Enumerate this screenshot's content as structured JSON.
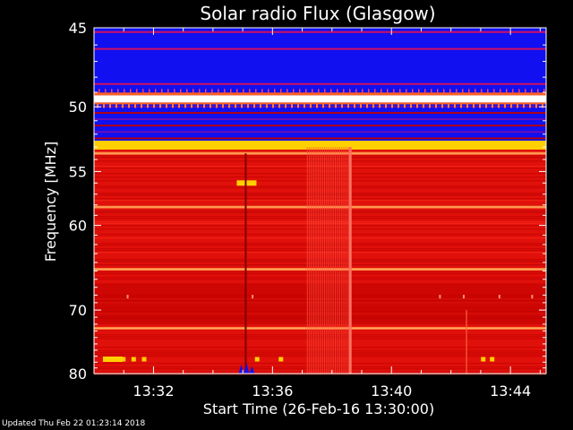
{
  "chart_data": {
    "type": "heatmap",
    "title": "Solar radio Flux (Glasgow)",
    "xlabel": "Start Time (26-Feb-16 13:30:00)",
    "ylabel": "Frequency [MHz]",
    "x_range_minutes": [
      0,
      15.2
    ],
    "x_ticks": [
      {
        "minutes": 2,
        "label": "13:32"
      },
      {
        "minutes": 6,
        "label": "13:36"
      },
      {
        "minutes": 10,
        "label": "13:40"
      },
      {
        "minutes": 14,
        "label": "13:44"
      }
    ],
    "y_range_mhz": [
      45,
      80
    ],
    "y_scale": "inverted-reciprocal",
    "y_ticks": [
      45,
      50,
      55,
      60,
      70,
      80
    ],
    "background_level": "red",
    "bands": [
      {
        "from": 45,
        "to": 49.2,
        "level": "blue"
      },
      {
        "from": 49.2,
        "to": 49.7,
        "level": "white"
      },
      {
        "from": 49.7,
        "to": 52.5,
        "level": "blue-red-striped"
      },
      {
        "from": 52.5,
        "to": 53.2,
        "level": "yellow"
      },
      {
        "from": 53.2,
        "to": 80,
        "level": "red"
      }
    ],
    "bright_lines_mhz": [
      53.5,
      58.2,
      64.8,
      72.6
    ],
    "bursts": [
      {
        "time_minutes": 5.1,
        "freq_mhz": 56,
        "level": "yellow"
      },
      {
        "time_minutes": 8.6,
        "freq_mhz_range": [
          53,
          80
        ],
        "level": "light-red"
      },
      {
        "time_minutes": 0.6,
        "freq_mhz": 77.5,
        "level": "yellow"
      }
    ]
  },
  "footer": {
    "updated": "Updated Thu Feb 22 01:23:14 2018"
  },
  "colors": {
    "background": "#000000",
    "red": "#e0100a",
    "dark_red": "#c00000",
    "blue": "#1010f0",
    "yellow": "#ffd000",
    "white": "#ffffff",
    "text": "#ffffff"
  }
}
